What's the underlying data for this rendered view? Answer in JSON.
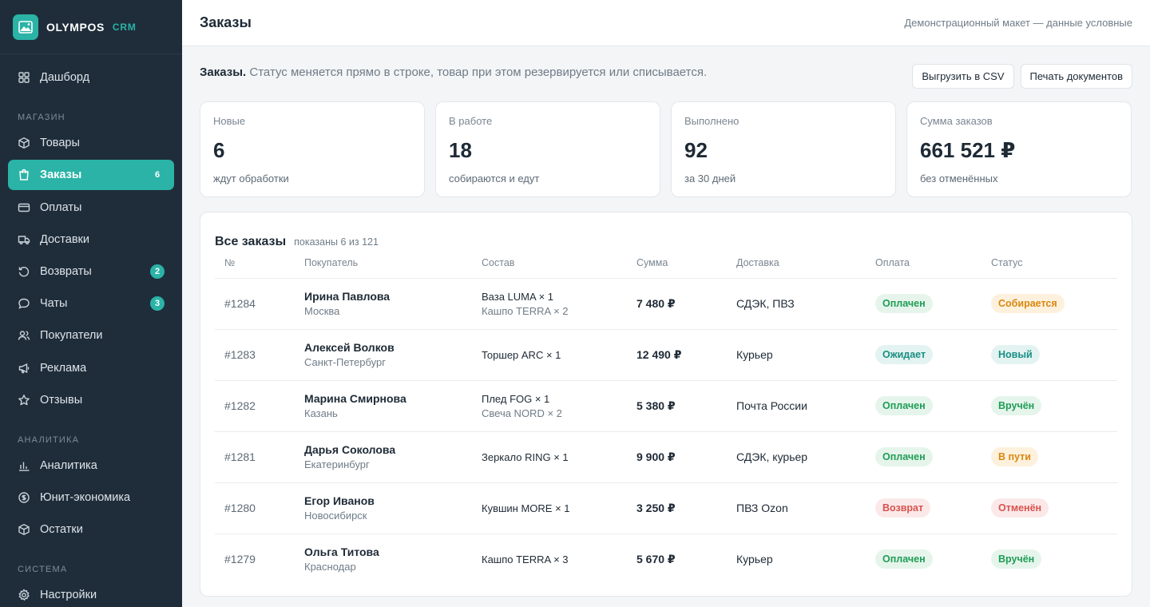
{
  "brand": {
    "name": "OLYMPOS",
    "sub": "CRM"
  },
  "sidebar": {
    "top": [
      {
        "label": "Дашборд",
        "icon": "grid-icon"
      }
    ],
    "sections": [
      {
        "label": "МАГАЗИН",
        "items": [
          {
            "label": "Товары",
            "icon": "box-icon"
          },
          {
            "label": "Заказы",
            "icon": "bag-icon",
            "badge": "6",
            "active": true
          },
          {
            "label": "Оплаты",
            "icon": "card-icon"
          },
          {
            "label": "Доставки",
            "icon": "truck-icon"
          },
          {
            "label": "Возвраты",
            "icon": "return-icon",
            "badge": "2"
          },
          {
            "label": "Чаты",
            "icon": "chat-icon",
            "badge": "3"
          },
          {
            "label": "Покупатели",
            "icon": "users-icon"
          },
          {
            "label": "Реклама",
            "icon": "megaphone-icon"
          },
          {
            "label": "Отзывы",
            "icon": "star-icon"
          }
        ]
      },
      {
        "label": "АНАЛИТИКА",
        "items": [
          {
            "label": "Аналитика",
            "icon": "bar-chart-icon"
          },
          {
            "label": "Юнит-экономика",
            "icon": "coin-icon"
          },
          {
            "label": "Остатки",
            "icon": "box-icon"
          }
        ]
      },
      {
        "label": "СИСТЕМА",
        "items": [
          {
            "label": "Настройки",
            "icon": "gear-icon"
          }
        ]
      }
    ]
  },
  "header": {
    "title": "Заказы",
    "note": "Демонстрационный макет — данные условные"
  },
  "intro": {
    "bold": "Заказы.",
    "text": "Статус меняется прямо в строке, товар при этом резервируется или списывается."
  },
  "actions": {
    "export": "Выгрузить в CSV",
    "print": "Печать документов"
  },
  "kpis": [
    {
      "label": "Новые",
      "value": "6",
      "sub": "ждут обработки"
    },
    {
      "label": "В работе",
      "value": "18",
      "sub": "собираются и едут"
    },
    {
      "label": "Выполнено",
      "value": "92",
      "sub": "за 30 дней"
    },
    {
      "label": "Сумма заказов",
      "value": "661 521 ₽",
      "sub": "без отменённых"
    }
  ],
  "orders": {
    "title": "Все заказы",
    "count": "показаны 6 из 121",
    "columns": [
      "№",
      "Покупатель",
      "Состав",
      "Сумма",
      "Доставка",
      "Оплата",
      "Статус"
    ],
    "rows": [
      {
        "num": "#1284",
        "name": "Ирина Павлова",
        "city": "Москва",
        "items": [
          "Ваза LUMA × 1",
          "Кашпо TERRA × 2"
        ],
        "sum": "7 480 ₽",
        "delivery": "СДЭК, ПВЗ",
        "payment": "Оплачен",
        "payment_color": "green",
        "status": "Собирается",
        "status_color": "orange"
      },
      {
        "num": "#1283",
        "name": "Алексей Волков",
        "city": "Санкт-Петербург",
        "items": [
          "Торшер ARC × 1"
        ],
        "sum": "12 490 ₽",
        "delivery": "Курьер",
        "payment": "Ожидает",
        "payment_color": "teal",
        "status": "Новый",
        "status_color": "teal"
      },
      {
        "num": "#1282",
        "name": "Марина Смирнова",
        "city": "Казань",
        "items": [
          "Плед FOG × 1",
          "Свеча NORD × 2"
        ],
        "sum": "5 380 ₽",
        "delivery": "Почта России",
        "payment": "Оплачен",
        "payment_color": "green",
        "status": "Вручён",
        "status_color": "green"
      },
      {
        "num": "#1281",
        "name": "Дарья Соколова",
        "city": "Екатеринбург",
        "items": [
          "Зеркало RING × 1"
        ],
        "sum": "9 900 ₽",
        "delivery": "СДЭК, курьер",
        "payment": "Оплачен",
        "payment_color": "green",
        "status": "В пути",
        "status_color": "orange"
      },
      {
        "num": "#1280",
        "name": "Егор Иванов",
        "city": "Новосибирск",
        "items": [
          "Кувшин MORE × 1"
        ],
        "sum": "3 250 ₽",
        "delivery": "ПВЗ Ozon",
        "payment": "Возврат",
        "payment_color": "red",
        "status": "Отменён",
        "status_color": "red"
      },
      {
        "num": "#1279",
        "name": "Ольга Титова",
        "city": "Краснодар",
        "items": [
          "Кашпо TERRA × 3"
        ],
        "sum": "5 670 ₽",
        "delivery": "Курьер",
        "payment": "Оплачен",
        "payment_color": "green",
        "status": "Вручён",
        "status_color": "green"
      }
    ]
  }
}
